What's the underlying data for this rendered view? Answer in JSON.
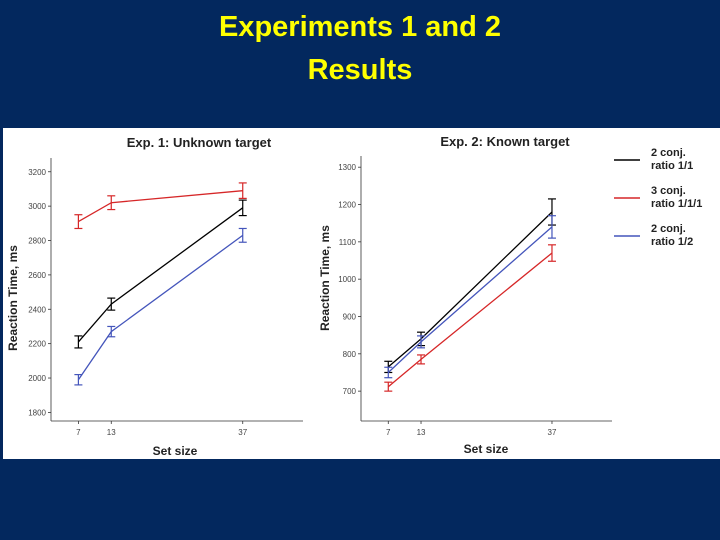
{
  "slide": {
    "title_line1": "Experiments 1 and 2",
    "title_line2": "Results"
  },
  "legend": [
    {
      "line1": "2 conj.",
      "line2": "ratio 1/1",
      "color": "#000000"
    },
    {
      "line1": "3 conj.",
      "line2": "ratio 1/1/1",
      "color": "#d62728"
    },
    {
      "line1": "2 conj.",
      "line2": "ratio 1/2",
      "color": "#4455bb"
    }
  ],
  "chart_data": [
    {
      "type": "line",
      "title": "Exp. 1: Unknown target",
      "xlabel": "Set size",
      "ylabel": "Reaction Time, ms",
      "x": [
        7,
        13,
        37
      ],
      "xlim": [
        2,
        48
      ],
      "ylim": [
        1750,
        3280
      ],
      "yticks": [
        1800,
        2000,
        2200,
        2400,
        2600,
        2800,
        3000,
        3200
      ],
      "grid": false,
      "series": [
        {
          "color": "#000000",
          "values": [
            2210,
            2430,
            2990
          ],
          "errors": [
            35,
            35,
            45
          ]
        },
        {
          "color": "#d62728",
          "values": [
            2910,
            3020,
            3090
          ],
          "errors": [
            40,
            40,
            45
          ]
        },
        {
          "color": "#4455bb",
          "values": [
            1990,
            2270,
            2830
          ],
          "errors": [
            30,
            30,
            40
          ]
        }
      ]
    },
    {
      "type": "line",
      "title": "Exp. 2: Known target",
      "xlabel": "Set size",
      "ylabel": "Reaction Time, ms",
      "x": [
        7,
        13,
        37
      ],
      "xlim": [
        2,
        48
      ],
      "ylim": [
        620,
        1330
      ],
      "yticks": [
        700,
        800,
        900,
        1000,
        1100,
        1200,
        1300
      ],
      "grid": false,
      "series": [
        {
          "color": "#000000",
          "values": [
            765,
            840,
            1180
          ],
          "errors": [
            15,
            18,
            35
          ]
        },
        {
          "color": "#d62728",
          "values": [
            712,
            785,
            1070
          ],
          "errors": [
            12,
            12,
            22
          ]
        },
        {
          "color": "#4455bb",
          "values": [
            750,
            832,
            1140
          ],
          "errors": [
            14,
            16,
            30
          ]
        }
      ]
    }
  ]
}
